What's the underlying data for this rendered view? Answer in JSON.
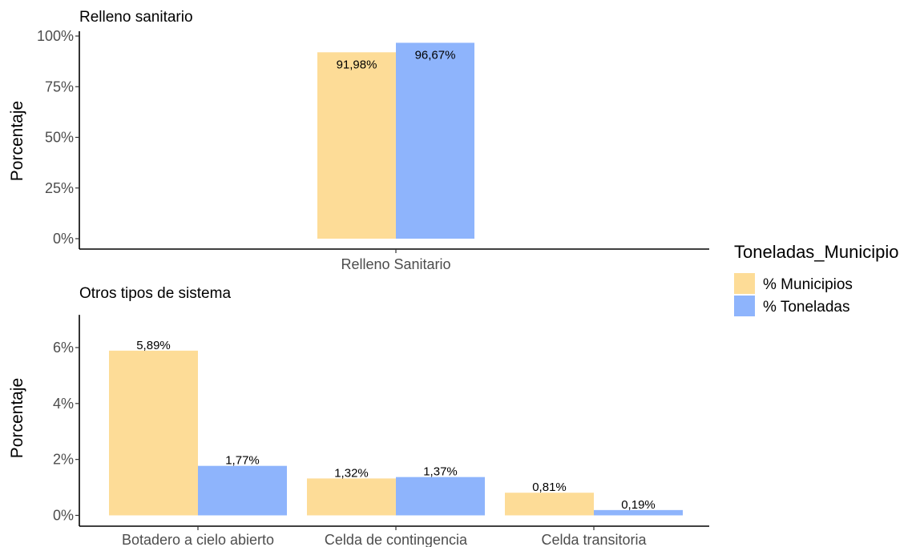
{
  "chart_data": [
    {
      "type": "bar",
      "title": "Relleno sanitario",
      "xlabel": "",
      "ylabel": "Porcentaje",
      "categories": [
        "Relleno Sanitario"
      ],
      "ylim": [
        0,
        100
      ],
      "y_ticks": [
        0,
        25,
        50,
        75,
        100
      ],
      "y_tick_labels": [
        "0%",
        "25%",
        "50%",
        "75%",
        "100%"
      ],
      "series": [
        {
          "name": "% Municipios",
          "values": [
            91.98
          ],
          "labels": [
            "91,98%"
          ]
        },
        {
          "name": "% Toneladas",
          "values": [
            96.67
          ],
          "labels": [
            "96,67%"
          ]
        }
      ],
      "grid": false
    },
    {
      "type": "bar",
      "title": "Otros tipos de sistema",
      "xlabel": "",
      "ylabel": "Porcentaje",
      "categories": [
        "Botadero a cielo abierto",
        "Celda de contingencia",
        "Celda transitoria"
      ],
      "ylim": [
        0,
        7
      ],
      "y_ticks": [
        0,
        2,
        4,
        6
      ],
      "y_tick_labels": [
        "0%",
        "2%",
        "4%",
        "6%"
      ],
      "series": [
        {
          "name": "% Municipios",
          "values": [
            5.89,
            1.32,
            0.81
          ],
          "labels": [
            "5,89%",
            "1,32%",
            "0,81%"
          ]
        },
        {
          "name": "% Toneladas",
          "values": [
            1.77,
            1.37,
            0.19
          ],
          "labels": [
            "1,77%",
            "1,37%",
            "0,19%"
          ]
        }
      ],
      "grid": false
    }
  ],
  "legend": {
    "title": "Toneladas_Municipio",
    "placement": "right",
    "items": [
      {
        "label": "% Municipios",
        "color": "#FDDC97"
      },
      {
        "label": "% Toneladas",
        "color": "#8EB4FC"
      }
    ]
  },
  "colors": {
    "municipios": "#FDDC97",
    "toneladas": "#8EB4FC"
  }
}
